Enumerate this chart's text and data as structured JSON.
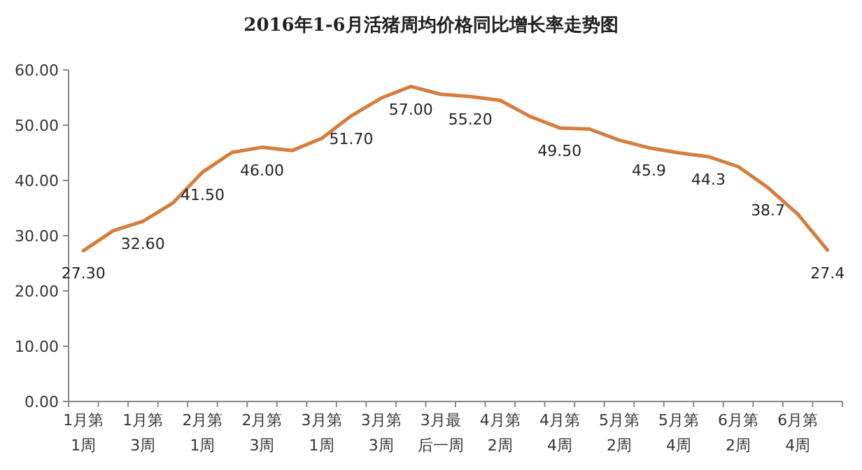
{
  "chart_data": {
    "type": "line",
    "title": "2016年1-6月活猪周均价格同比增长率走势图",
    "categories": [
      "1月第1周",
      null,
      "1月第3周",
      null,
      "2月第1周",
      null,
      "2月第3周",
      null,
      "3月第1周",
      null,
      "3月第3周",
      null,
      "3月最后一周",
      null,
      "4月第2周",
      null,
      "4月第4周",
      null,
      "5月第2周",
      null,
      "5月第4周",
      null,
      "6月第2周",
      null,
      "6月第4周",
      null
    ],
    "series": [
      {
        "color": "#d67c3c",
        "values": [
          27.3,
          30.9,
          32.6,
          35.9,
          41.5,
          45.1,
          46.0,
          45.4,
          47.6,
          51.7,
          54.9,
          57.0,
          55.6,
          55.2,
          54.5,
          51.6,
          49.5,
          49.3,
          47.3,
          45.9,
          45.0,
          44.3,
          42.5,
          38.7,
          33.9,
          27.4
        ],
        "value_labels": [
          "27.30",
          null,
          "32.60",
          null,
          "41.50",
          null,
          "46.00",
          null,
          null,
          "51.70",
          null,
          "57.00",
          null,
          "55.20",
          null,
          null,
          "49.50",
          null,
          null,
          "45.9",
          null,
          "44.3",
          null,
          "38.7",
          null,
          "27.4"
        ]
      }
    ],
    "ylim": [
      0,
      60
    ],
    "yticks": [
      {
        "value": 0,
        "label": "0.00"
      },
      {
        "value": 10,
        "label": "10.00"
      },
      {
        "value": 20,
        "label": "20.00"
      },
      {
        "value": 30,
        "label": "30.00"
      },
      {
        "value": 40,
        "label": "40.00"
      },
      {
        "value": 50,
        "label": "50.00"
      },
      {
        "value": 60,
        "label": "60.00"
      }
    ],
    "grid": false,
    "marker": "none",
    "line_style": "solid"
  }
}
